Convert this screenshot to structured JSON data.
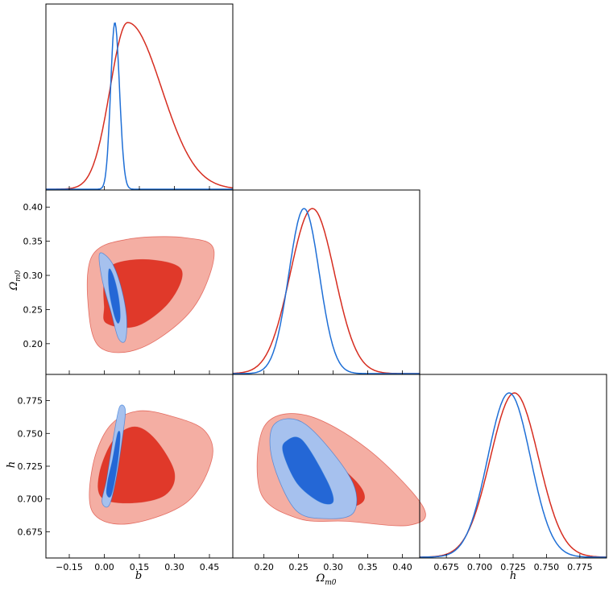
{
  "chart_data": {
    "type": "triangle",
    "parameters": [
      "b",
      "Ω_m0",
      "h"
    ],
    "series": [
      {
        "name": "red",
        "color": "#d62d20",
        "fill_inner": "#e0392a",
        "fill_outer": "#f4aea3",
        "marginals": {
          "b": {
            "mean": 0.1,
            "sigma_left": 0.075,
            "sigma_right": 0.145
          },
          "omega": {
            "mean": 0.27,
            "sigma": 0.032
          },
          "h": {
            "mean": 0.726,
            "sigma": 0.018
          }
        }
      },
      {
        "name": "blue",
        "color": "#1f6fd6",
        "fill_inner": "#2467d6",
        "fill_outer": "#a6c1ee",
        "marginals": {
          "b": {
            "mean": 0.045,
            "sigma_left": 0.018,
            "sigma_right": 0.02
          },
          "omega": {
            "mean": 0.258,
            "sigma": 0.022
          },
          "h": {
            "mean": 0.722,
            "sigma": 0.016
          }
        }
      }
    ],
    "axes": {
      "b": {
        "range": [
          -0.25,
          0.55
        ],
        "ticks": [
          "−0.15",
          "0.00",
          "0.15",
          "0.30",
          "0.45"
        ],
        "tick_values": [
          -0.15,
          0.0,
          0.15,
          0.3,
          0.45
        ],
        "label": "b"
      },
      "omega": {
        "range": [
          0.155,
          0.425
        ],
        "ticks": [
          "0.20",
          "0.25",
          "0.30",
          "0.35",
          "0.40"
        ],
        "tick_values": [
          0.2,
          0.25,
          0.3,
          0.35,
          0.4
        ],
        "label": "Ω",
        "label_sub": "m0"
      },
      "h": {
        "range": [
          0.655,
          0.795
        ],
        "ticks": [
          "0.675",
          "0.700",
          "0.725",
          "0.750",
          "0.775"
        ],
        "tick_values": [
          0.675,
          0.7,
          0.725,
          0.75,
          0.775
        ],
        "label": "h"
      }
    },
    "contours_2d": {
      "b_omega": {
        "red": {
          "outer": [
            [
              -0.02,
              0.195
            ],
            [
              0.16,
              0.194
            ],
            [
              0.38,
              0.252
            ],
            [
              0.47,
              0.335
            ],
            [
              0.35,
              0.355
            ],
            [
              0.1,
              0.353
            ],
            [
              -0.05,
              0.33
            ],
            [
              -0.07,
              0.26
            ]
          ],
          "inner": [
            [
              0.01,
              0.23
            ],
            [
              0.14,
              0.226
            ],
            [
              0.28,
              0.262
            ],
            [
              0.33,
              0.308
            ],
            [
              0.19,
              0.323
            ],
            [
              0.04,
              0.316
            ],
            [
              0.0,
              0.29
            ],
            [
              0.0,
              0.255
            ]
          ]
        },
        "blue": {
          "outer": [
            [
              -0.02,
              0.332
            ],
            [
              0.03,
              0.32
            ],
            [
              0.07,
              0.285
            ],
            [
              0.095,
              0.24
            ],
            [
              0.09,
              0.205
            ],
            [
              0.06,
              0.208
            ],
            [
              0.03,
              0.245
            ],
            [
              -0.01,
              0.295
            ]
          ],
          "inner": [
            [
              0.02,
              0.309
            ],
            [
              0.04,
              0.298
            ],
            [
              0.06,
              0.27
            ],
            [
              0.068,
              0.24
            ],
            [
              0.058,
              0.23
            ],
            [
              0.04,
              0.245
            ],
            [
              0.02,
              0.28
            ]
          ]
        }
      },
      "b_h": {
        "red": {
          "outer": [
            [
              -0.05,
              0.69
            ],
            [
              0.1,
              0.681
            ],
            [
              0.35,
              0.697
            ],
            [
              0.46,
              0.73
            ],
            [
              0.43,
              0.752
            ],
            [
              0.29,
              0.763
            ],
            [
              0.14,
              0.767
            ],
            [
              0.02,
              0.755
            ],
            [
              -0.05,
              0.725
            ]
          ],
          "inner": [
            [
              -0.01,
              0.701
            ],
            [
              0.12,
              0.697
            ],
            [
              0.26,
              0.703
            ],
            [
              0.3,
              0.72
            ],
            [
              0.22,
              0.745
            ],
            [
              0.13,
              0.755
            ],
            [
              0.04,
              0.745
            ],
            [
              -0.02,
              0.72
            ]
          ]
        },
        "blue": {
          "outer": [
            [
              -0.01,
              0.698
            ],
            [
              0.02,
              0.695
            ],
            [
              0.05,
              0.715
            ],
            [
              0.08,
              0.75
            ],
            [
              0.09,
              0.768
            ],
            [
              0.065,
              0.77
            ],
            [
              0.04,
              0.748
            ],
            [
              0.01,
              0.715
            ]
          ],
          "inner": [
            [
              0.01,
              0.704
            ],
            [
              0.03,
              0.703
            ],
            [
              0.055,
              0.725
            ],
            [
              0.068,
              0.748
            ],
            [
              0.057,
              0.75
            ],
            [
              0.035,
              0.73
            ],
            [
              0.015,
              0.714
            ]
          ]
        }
      },
      "omega_h": {
        "red": {
          "outer": [
            [
              0.2,
              0.755
            ],
            [
              0.26,
              0.764
            ],
            [
              0.35,
              0.738
            ],
            [
              0.43,
              0.694
            ],
            [
              0.41,
              0.68
            ],
            [
              0.32,
              0.683
            ],
            [
              0.25,
              0.685
            ],
            [
              0.195,
              0.705
            ]
          ],
          "inner": [
            [
              0.225,
              0.742
            ],
            [
              0.27,
              0.74
            ],
            [
              0.33,
              0.715
            ],
            [
              0.345,
              0.7
            ],
            [
              0.32,
              0.694
            ],
            [
              0.27,
              0.702
            ],
            [
              0.233,
              0.72
            ]
          ]
        },
        "blue": {
          "outer": [
            [
              0.215,
              0.757
            ],
            [
              0.26,
              0.757
            ],
            [
              0.325,
              0.716
            ],
            [
              0.33,
              0.69
            ],
            [
              0.29,
              0.685
            ],
            [
              0.245,
              0.692
            ],
            [
              0.212,
              0.73
            ]
          ],
          "inner": [
            [
              0.232,
              0.744
            ],
            [
              0.255,
              0.745
            ],
            [
              0.29,
              0.715
            ],
            [
              0.3,
              0.698
            ],
            [
              0.28,
              0.698
            ],
            [
              0.248,
              0.712
            ],
            [
              0.228,
              0.735
            ]
          ]
        }
      }
    }
  }
}
